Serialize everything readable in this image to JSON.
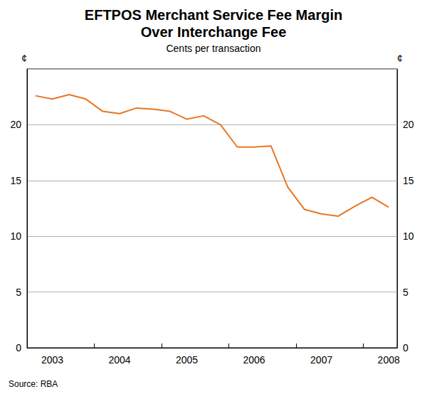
{
  "chart_data": {
    "type": "line",
    "title": "EFTPOS Merchant Service Fee Margin Over Interchange Fee",
    "subtitle": "Cents per transaction",
    "ylabel": "¢",
    "source": "Source: RBA",
    "categories": [
      null,
      "2003",
      null,
      null,
      null,
      "2004",
      null,
      null,
      null,
      "2005",
      null,
      null,
      null,
      "2006",
      null,
      null,
      null,
      "2007",
      null,
      null,
      null,
      "2008"
    ],
    "values": [
      22.6,
      22.3,
      22.7,
      22.3,
      21.2,
      21.0,
      21.5,
      21.4,
      21.2,
      20.5,
      20.8,
      20.0,
      18.0,
      18.0,
      18.1,
      14.4,
      12.4,
      12.0,
      11.8,
      12.7,
      13.5,
      12.6
    ],
    "color": "#e87722",
    "ylim": [
      0,
      25
    ],
    "yticks": [
      0,
      5,
      10,
      15,
      20
    ],
    "grid": true
  }
}
